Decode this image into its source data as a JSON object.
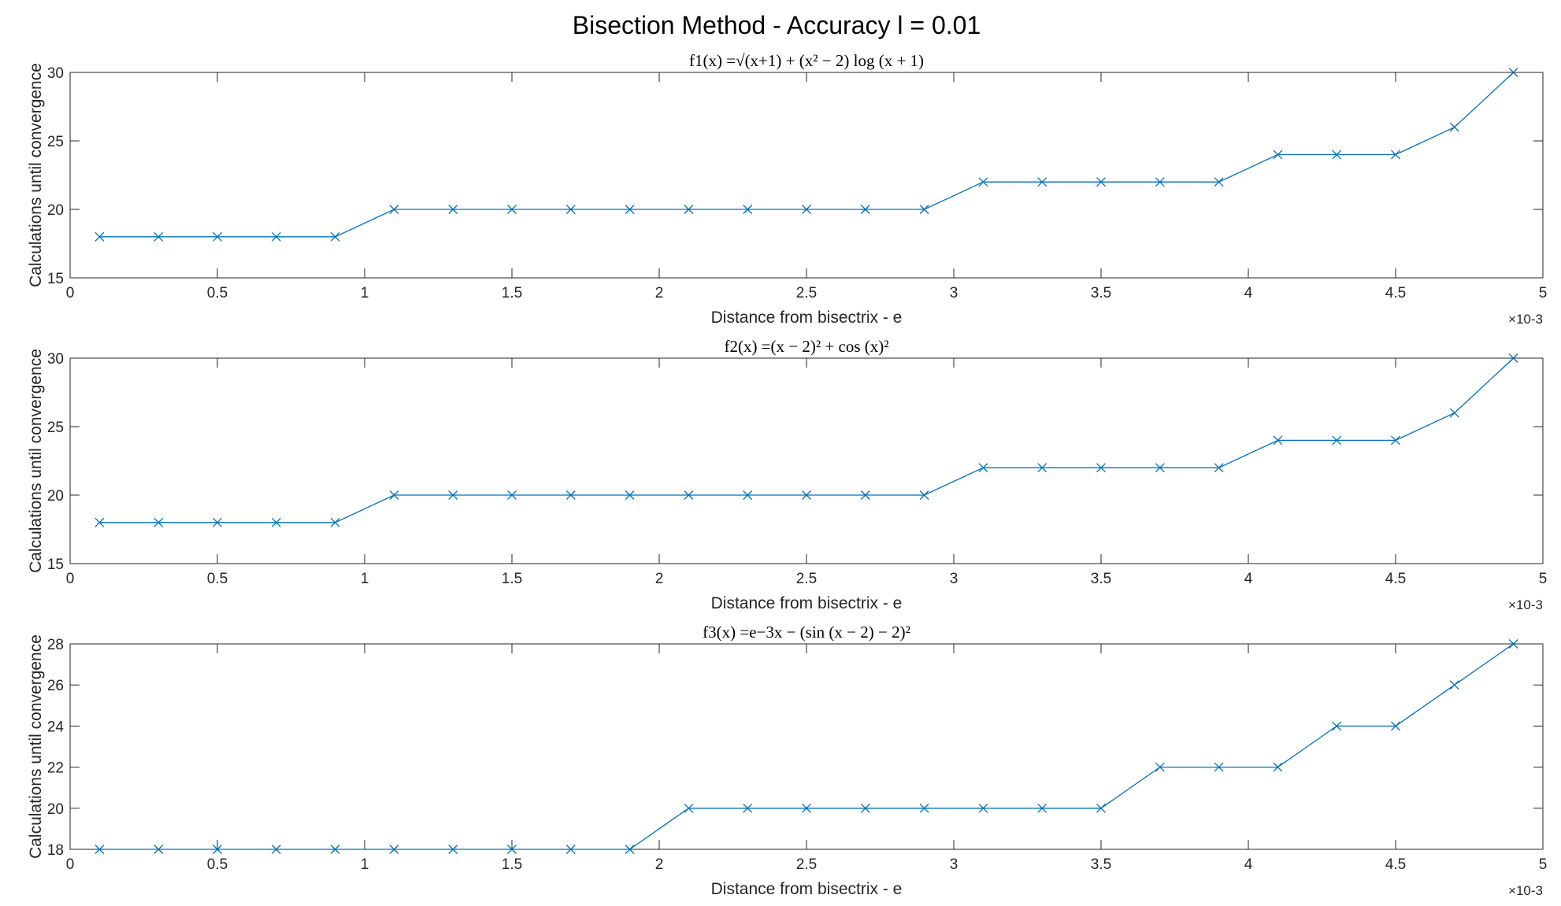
{
  "figure": {
    "title": "Bisection Method - Accuracy l = 0.01"
  },
  "chart_data": [
    {
      "type": "line",
      "title": "f1(x) =√(x+1) + (x² − 2) log (x + 1)",
      "xlabel": "Distance from bisectrix - e",
      "ylabel": "Calculations until convergence",
      "x_exponent_label": "×10-3",
      "xlim": [
        0,
        0.005
      ],
      "ylim": [
        15,
        30
      ],
      "xticks": [
        0,
        0.0005,
        0.001,
        0.0015,
        0.002,
        0.0025,
        0.003,
        0.0035,
        0.004,
        0.0045,
        0.005
      ],
      "xtick_labels": [
        "0",
        "0.5",
        "1",
        "1.5",
        "2",
        "2.5",
        "3",
        "3.5",
        "4",
        "4.5",
        "5"
      ],
      "yticks": [
        15,
        20,
        25,
        30
      ],
      "ytick_labels": [
        "15",
        "20",
        "25",
        "30"
      ],
      "grid": false,
      "marker": "x",
      "color": "#0072BD",
      "series": [
        {
          "x": [
            0.0001,
            0.0003,
            0.0005,
            0.0007,
            0.0009,
            0.0011,
            0.0013,
            0.0015,
            0.0017,
            0.0019,
            0.0021,
            0.0023,
            0.0025,
            0.0027,
            0.0029,
            0.0031,
            0.0033,
            0.0035,
            0.0037,
            0.0039,
            0.0041,
            0.0043,
            0.0045,
            0.0047,
            0.0049
          ],
          "values": [
            18,
            18,
            18,
            18,
            18,
            20,
            20,
            20,
            20,
            20,
            20,
            20,
            20,
            20,
            20,
            22,
            22,
            22,
            22,
            22,
            24,
            24,
            24,
            26,
            30
          ]
        }
      ]
    },
    {
      "type": "line",
      "title": "f2(x) =(x − 2)² + cos (x)²",
      "xlabel": "Distance from bisectrix - e",
      "ylabel": "Calculations until convergence",
      "x_exponent_label": "×10-3",
      "xlim": [
        0,
        0.005
      ],
      "ylim": [
        15,
        30
      ],
      "xticks": [
        0,
        0.0005,
        0.001,
        0.0015,
        0.002,
        0.0025,
        0.003,
        0.0035,
        0.004,
        0.0045,
        0.005
      ],
      "xtick_labels": [
        "0",
        "0.5",
        "1",
        "1.5",
        "2",
        "2.5",
        "3",
        "3.5",
        "4",
        "4.5",
        "5"
      ],
      "yticks": [
        15,
        20,
        25,
        30
      ],
      "ytick_labels": [
        "15",
        "20",
        "25",
        "30"
      ],
      "grid": false,
      "marker": "x",
      "color": "#0072BD",
      "series": [
        {
          "x": [
            0.0001,
            0.0003,
            0.0005,
            0.0007,
            0.0009,
            0.0011,
            0.0013,
            0.0015,
            0.0017,
            0.0019,
            0.0021,
            0.0023,
            0.0025,
            0.0027,
            0.0029,
            0.0031,
            0.0033,
            0.0035,
            0.0037,
            0.0039,
            0.0041,
            0.0043,
            0.0045,
            0.0047,
            0.0049
          ],
          "values": [
            18,
            18,
            18,
            18,
            18,
            20,
            20,
            20,
            20,
            20,
            20,
            20,
            20,
            20,
            20,
            22,
            22,
            22,
            22,
            22,
            24,
            24,
            24,
            26,
            30
          ]
        }
      ]
    },
    {
      "type": "line",
      "title": "f3(x) =e−3x − (sin (x − 2) − 2)²",
      "xlabel": "Distance from bisectrix - e",
      "ylabel": "Calculations until convergence",
      "x_exponent_label": "×10-3",
      "xlim": [
        0,
        0.005
      ],
      "ylim": [
        18,
        28
      ],
      "xticks": [
        0,
        0.0005,
        0.001,
        0.0015,
        0.002,
        0.0025,
        0.003,
        0.0035,
        0.004,
        0.0045,
        0.005
      ],
      "xtick_labels": [
        "0",
        "0.5",
        "1",
        "1.5",
        "2",
        "2.5",
        "3",
        "3.5",
        "4",
        "4.5",
        "5"
      ],
      "yticks": [
        18,
        20,
        22,
        24,
        26,
        28
      ],
      "ytick_labels": [
        "18",
        "20",
        "22",
        "24",
        "26",
        "28"
      ],
      "grid": false,
      "marker": "x",
      "color": "#0072BD",
      "series": [
        {
          "x": [
            0.0001,
            0.0003,
            0.0005,
            0.0007,
            0.0009,
            0.0011,
            0.0013,
            0.0015,
            0.0017,
            0.0019,
            0.0021,
            0.0023,
            0.0025,
            0.0027,
            0.0029,
            0.0031,
            0.0033,
            0.0035,
            0.0037,
            0.0039,
            0.0041,
            0.0043,
            0.0045,
            0.0047,
            0.0049
          ],
          "values": [
            18,
            18,
            18,
            18,
            18,
            18,
            18,
            18,
            18,
            18,
            20,
            20,
            20,
            20,
            20,
            20,
            20,
            20,
            22,
            22,
            22,
            24,
            24,
            26,
            28
          ]
        }
      ]
    }
  ]
}
